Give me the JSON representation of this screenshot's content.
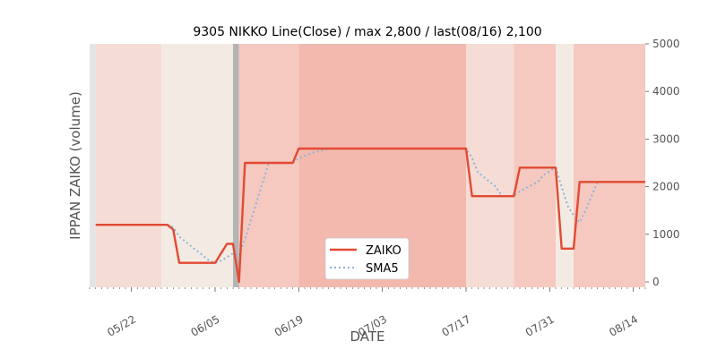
{
  "chart_data": {
    "type": "line",
    "title": "9305 NIKKO Line(Close) / max 2,800 / last(08/16) 2,100",
    "xlabel": "DATE",
    "ylabel": "IPPAN ZAIKO (volume)",
    "ylim": [
      0,
      5000
    ],
    "yticks": [
      0,
      1000,
      2000,
      3000,
      4000,
      5000
    ],
    "y_axis_side": "right",
    "xlim": [
      "2019-05-15",
      "2019-08-16"
    ],
    "xticks": [
      {
        "date": "2019-05-22",
        "label": "05/22"
      },
      {
        "date": "2019-06-05",
        "label": "06/05"
      },
      {
        "date": "2019-06-19",
        "label": "06/19"
      },
      {
        "date": "2019-07-03",
        "label": "07/03"
      },
      {
        "date": "2019-07-17",
        "label": "07/17"
      },
      {
        "date": "2019-07-31",
        "label": "07/31"
      },
      {
        "date": "2019-08-14",
        "label": "08/14"
      }
    ],
    "grid": false,
    "legend": {
      "placement": "bottom-center"
    },
    "series": [
      {
        "name": "ZAIKO",
        "color": "#e24a33",
        "style": "solid",
        "points": [
          [
            "2019-05-16",
            1200
          ],
          [
            "2019-05-28",
            1200
          ],
          [
            "2019-05-29",
            1100
          ],
          [
            "2019-05-30",
            400
          ],
          [
            "2019-06-05",
            400
          ],
          [
            "2019-06-07",
            800
          ],
          [
            "2019-06-08",
            800
          ],
          [
            "2019-06-09",
            0
          ],
          [
            "2019-06-10",
            2500
          ],
          [
            "2019-06-18",
            2500
          ],
          [
            "2019-06-19",
            2800
          ],
          [
            "2019-07-17",
            2800
          ],
          [
            "2019-07-18",
            1800
          ],
          [
            "2019-07-25",
            1800
          ],
          [
            "2019-07-26",
            2400
          ],
          [
            "2019-08-01",
            2400
          ],
          [
            "2019-08-02",
            700
          ],
          [
            "2019-08-04",
            700
          ],
          [
            "2019-08-05",
            2100
          ],
          [
            "2019-08-16",
            2100
          ]
        ]
      },
      {
        "name": "SMA5",
        "color": "#8eb4d8",
        "style": "dotted",
        "points": [
          [
            "2019-05-28",
            1200
          ],
          [
            "2019-05-29",
            1150
          ],
          [
            "2019-05-30",
            950
          ],
          [
            "2019-05-31",
            850
          ],
          [
            "2019-06-03",
            550
          ],
          [
            "2019-06-04",
            450
          ],
          [
            "2019-06-05",
            400
          ],
          [
            "2019-06-06",
            450
          ],
          [
            "2019-06-07",
            520
          ],
          [
            "2019-06-08",
            600
          ],
          [
            "2019-06-09",
            550
          ],
          [
            "2019-06-10",
            900
          ],
          [
            "2019-06-11",
            1300
          ],
          [
            "2019-06-12",
            1700
          ],
          [
            "2019-06-13",
            2100
          ],
          [
            "2019-06-14",
            2500
          ],
          [
            "2019-06-18",
            2500
          ],
          [
            "2019-06-19",
            2600
          ],
          [
            "2019-06-21",
            2700
          ],
          [
            "2019-06-24",
            2800
          ],
          [
            "2019-07-17",
            2800
          ],
          [
            "2019-07-18",
            2600
          ],
          [
            "2019-07-19",
            2300
          ],
          [
            "2019-07-22",
            2000
          ],
          [
            "2019-07-23",
            1800
          ],
          [
            "2019-07-25",
            1800
          ],
          [
            "2019-07-26",
            1900
          ],
          [
            "2019-07-29",
            2100
          ],
          [
            "2019-07-30",
            2250
          ],
          [
            "2019-08-01",
            2400
          ],
          [
            "2019-08-02",
            2000
          ],
          [
            "2019-08-03",
            1600
          ],
          [
            "2019-08-04",
            1400
          ],
          [
            "2019-08-05",
            1250
          ],
          [
            "2019-08-06",
            1500
          ],
          [
            "2019-08-07",
            1800
          ],
          [
            "2019-08-08",
            2100
          ],
          [
            "2019-08-16",
            2100
          ]
        ]
      }
    ],
    "background_bands": [
      {
        "start": "2019-05-15",
        "end": "2019-05-16",
        "color": "#e5e5e5"
      },
      {
        "start": "2019-05-16",
        "end": "2019-05-27",
        "color": "#f5dcd5"
      },
      {
        "start": "2019-05-27",
        "end": "2019-06-08",
        "color": "#f3ebe3"
      },
      {
        "start": "2019-06-08",
        "end": "2019-06-09",
        "color": "#b4b4b4"
      },
      {
        "start": "2019-06-09",
        "end": "2019-06-19",
        "color": "#f5c9bf"
      },
      {
        "start": "2019-06-19",
        "end": "2019-07-17",
        "color": "#f3b9ae"
      },
      {
        "start": "2019-07-17",
        "end": "2019-07-25",
        "color": "#f5dcd5"
      },
      {
        "start": "2019-07-25",
        "end": "2019-08-01",
        "color": "#f5c9bf"
      },
      {
        "start": "2019-08-01",
        "end": "2019-08-04",
        "color": "#f3ebe3"
      },
      {
        "start": "2019-08-04",
        "end": "2019-08-16",
        "color": "#f5c9bf"
      },
      {
        "start": "2019-08-16",
        "end": "2019-08-17",
        "color": "#e5e5e5"
      }
    ]
  }
}
